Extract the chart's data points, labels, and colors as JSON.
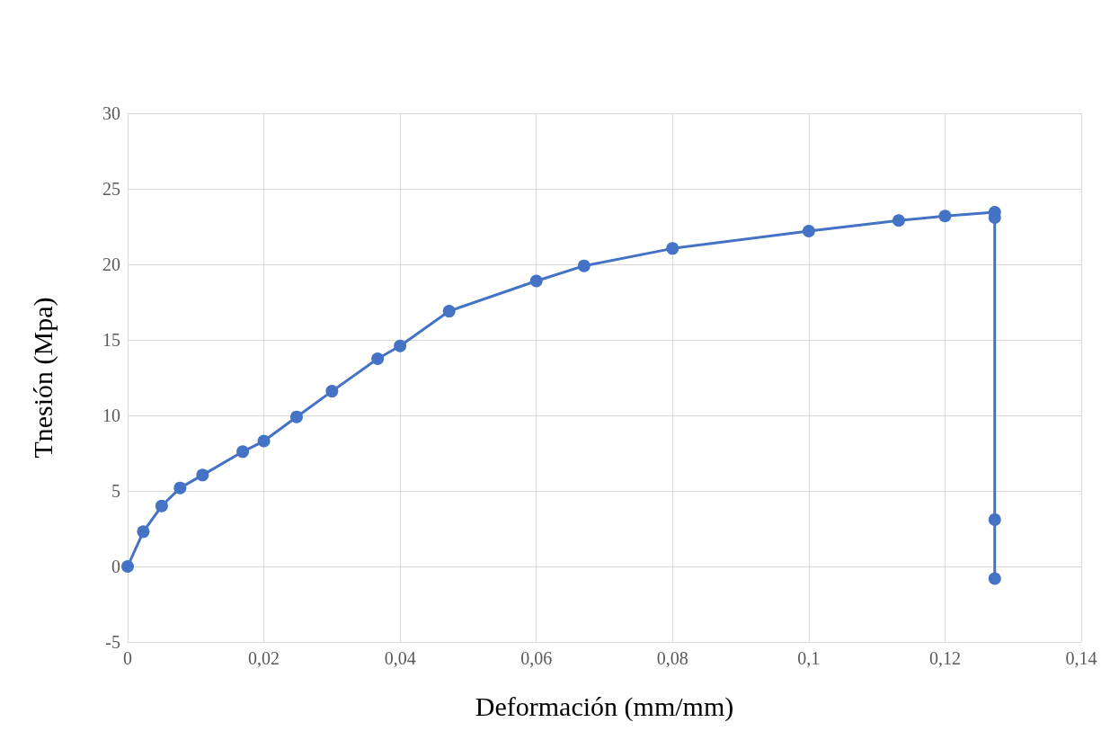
{
  "chart_data": {
    "type": "line",
    "xlabel": "Deformación (mm/mm)",
    "ylabel": "Tnesión (Mpa)",
    "series": [
      {
        "color": "#4472c4",
        "x": [
          0,
          0.0023,
          0.005,
          0.0077,
          0.011,
          0.0169,
          0.02,
          0.0248,
          0.03,
          0.0367,
          0.04,
          0.0472,
          0.06,
          0.067,
          0.08,
          0.1,
          0.1132,
          0.12,
          0.1273,
          0.1273,
          0.1273,
          0.1273
        ],
        "values": [
          0,
          2.3,
          4.0,
          5.2,
          6.05,
          7.6,
          8.3,
          9.9,
          11.6,
          13.75,
          14.6,
          16.9,
          18.9,
          19.9,
          21.05,
          22.2,
          22.9,
          23.2,
          23.45,
          23.1,
          3.1,
          -0.8
        ]
      }
    ],
    "xlim": [
      0,
      0.14
    ],
    "xticks": [
      0,
      {
        "value": 0.02,
        "label": "0,02"
      },
      {
        "value": 0.04,
        "label": "0,04"
      },
      {
        "value": 0.06,
        "label": "0,06"
      },
      {
        "value": 0.08,
        "label": "0,08"
      },
      {
        "value": 0.1,
        "label": "0,1"
      },
      {
        "value": 0.12,
        "label": "0,12"
      },
      {
        "value": 0.14,
        "label": "0,14"
      }
    ],
    "ylim": [
      -5,
      30
    ],
    "yticks": [
      -5,
      0,
      5,
      10,
      15,
      20,
      25,
      30
    ],
    "grid": true,
    "marker": "circle",
    "line_style": "solid"
  }
}
